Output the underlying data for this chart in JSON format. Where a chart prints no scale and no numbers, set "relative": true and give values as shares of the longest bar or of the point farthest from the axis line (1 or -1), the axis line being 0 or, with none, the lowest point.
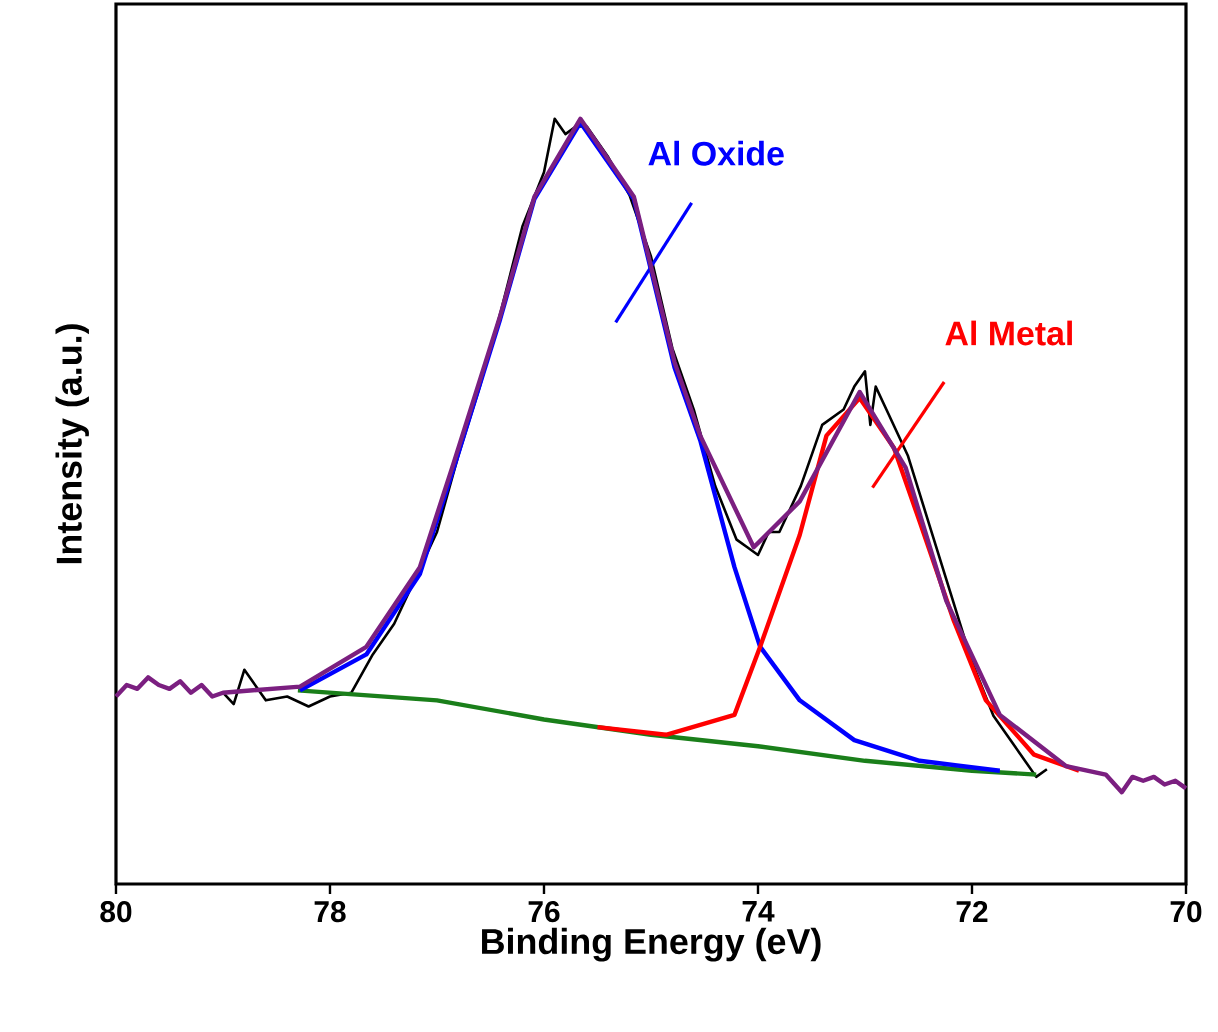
{
  "chart_data": {
    "type": "line",
    "relative": true,
    "xlabel": "Binding Energy (eV)",
    "ylabel": "Intensity (a.u.)",
    "xlim": [
      80,
      70
    ],
    "xticks": [
      80,
      78,
      76,
      74,
      72,
      70
    ],
    "series": [
      {
        "color": "#000000",
        "x": [
          79.0,
          78.9,
          78.8,
          78.6,
          78.4,
          78.2,
          78.0,
          77.8,
          77.6,
          77.4,
          77.2,
          77.0,
          76.8,
          76.6,
          76.4,
          76.2,
          76.0,
          75.9,
          75.8,
          75.7,
          75.6,
          75.5,
          75.4,
          75.2,
          75.0,
          74.8,
          74.6,
          74.4,
          74.2,
          74.1,
          74.0,
          73.9,
          73.8,
          73.6,
          73.4,
          73.2,
          73.1,
          73.0,
          72.95,
          72.9,
          72.8,
          72.6,
          72.4,
          72.2,
          72.0,
          71.8,
          71.6,
          71.4,
          71.3
        ],
        "values": [
          0.25,
          0.235,
          0.28,
          0.24,
          0.245,
          0.232,
          0.245,
          0.25,
          0.3,
          0.34,
          0.4,
          0.46,
          0.56,
          0.65,
          0.75,
          0.86,
          0.93,
          1.0,
          0.98,
          0.99,
          0.99,
          0.97,
          0.95,
          0.9,
          0.82,
          0.7,
          0.62,
          0.52,
          0.45,
          0.44,
          0.43,
          0.46,
          0.46,
          0.52,
          0.6,
          0.62,
          0.65,
          0.67,
          0.6,
          0.65,
          0.62,
          0.56,
          0.47,
          0.38,
          0.29,
          0.22,
          0.18,
          0.14,
          0.15
        ]
      },
      {
        "color": "#1a7f1a",
        "x": [
          78.3,
          77.0,
          76.0,
          75.0,
          74.0,
          73.0,
          72.0,
          71.4
        ],
        "values": [
          0.253,
          0.24,
          0.215,
          0.195,
          0.18,
          0.161,
          0.148,
          0.143
        ]
      },
      {
        "name": "Al Oxide",
        "color": "#0000ff",
        "x": [
          78.28,
          77.66,
          77.16,
          76.84,
          76.41,
          76.09,
          75.66,
          75.16,
          74.78,
          74.54,
          74.22,
          73.98,
          73.61,
          73.1,
          72.49,
          71.74
        ],
        "values": [
          0.253,
          0.3,
          0.405,
          0.545,
          0.738,
          0.895,
          0.995,
          0.895,
          0.675,
          0.58,
          0.414,
          0.31,
          0.24,
          0.188,
          0.161,
          0.148
        ]
      },
      {
        "name": "Al Metal",
        "color": "#ff0000",
        "x": [
          75.5,
          74.86,
          74.22,
          73.98,
          73.61,
          73.36,
          73.05,
          72.73,
          72.49,
          72.17,
          71.87,
          71.42,
          71.0
        ],
        "values": [
          0.205,
          0.195,
          0.221,
          0.31,
          0.456,
          0.586,
          0.635,
          0.57,
          0.474,
          0.344,
          0.24,
          0.169,
          0.148
        ]
      },
      {
        "color": "#7b1f80",
        "x": [
          80.0,
          79.9,
          79.8,
          79.7,
          79.6,
          79.5,
          79.4,
          79.3,
          79.2,
          79.1,
          79.0,
          78.28,
          77.66,
          77.16,
          76.84,
          76.41,
          76.09,
          75.66,
          75.16,
          74.78,
          74.54,
          74.04,
          73.61,
          73.05,
          72.62,
          72.24,
          71.74,
          71.12,
          70.75,
          70.6,
          70.5,
          70.4,
          70.3,
          70.2,
          70.1,
          70.0
        ],
        "values": [
          0.245,
          0.26,
          0.255,
          0.27,
          0.26,
          0.255,
          0.265,
          0.25,
          0.26,
          0.245,
          0.25,
          0.258,
          0.31,
          0.414,
          0.552,
          0.742,
          0.898,
          1.0,
          0.898,
          0.682,
          0.586,
          0.44,
          0.5,
          0.643,
          0.544,
          0.37,
          0.221,
          0.154,
          0.143,
          0.12,
          0.14,
          0.135,
          0.14,
          0.13,
          0.135,
          0.125
        ]
      }
    ]
  }
}
